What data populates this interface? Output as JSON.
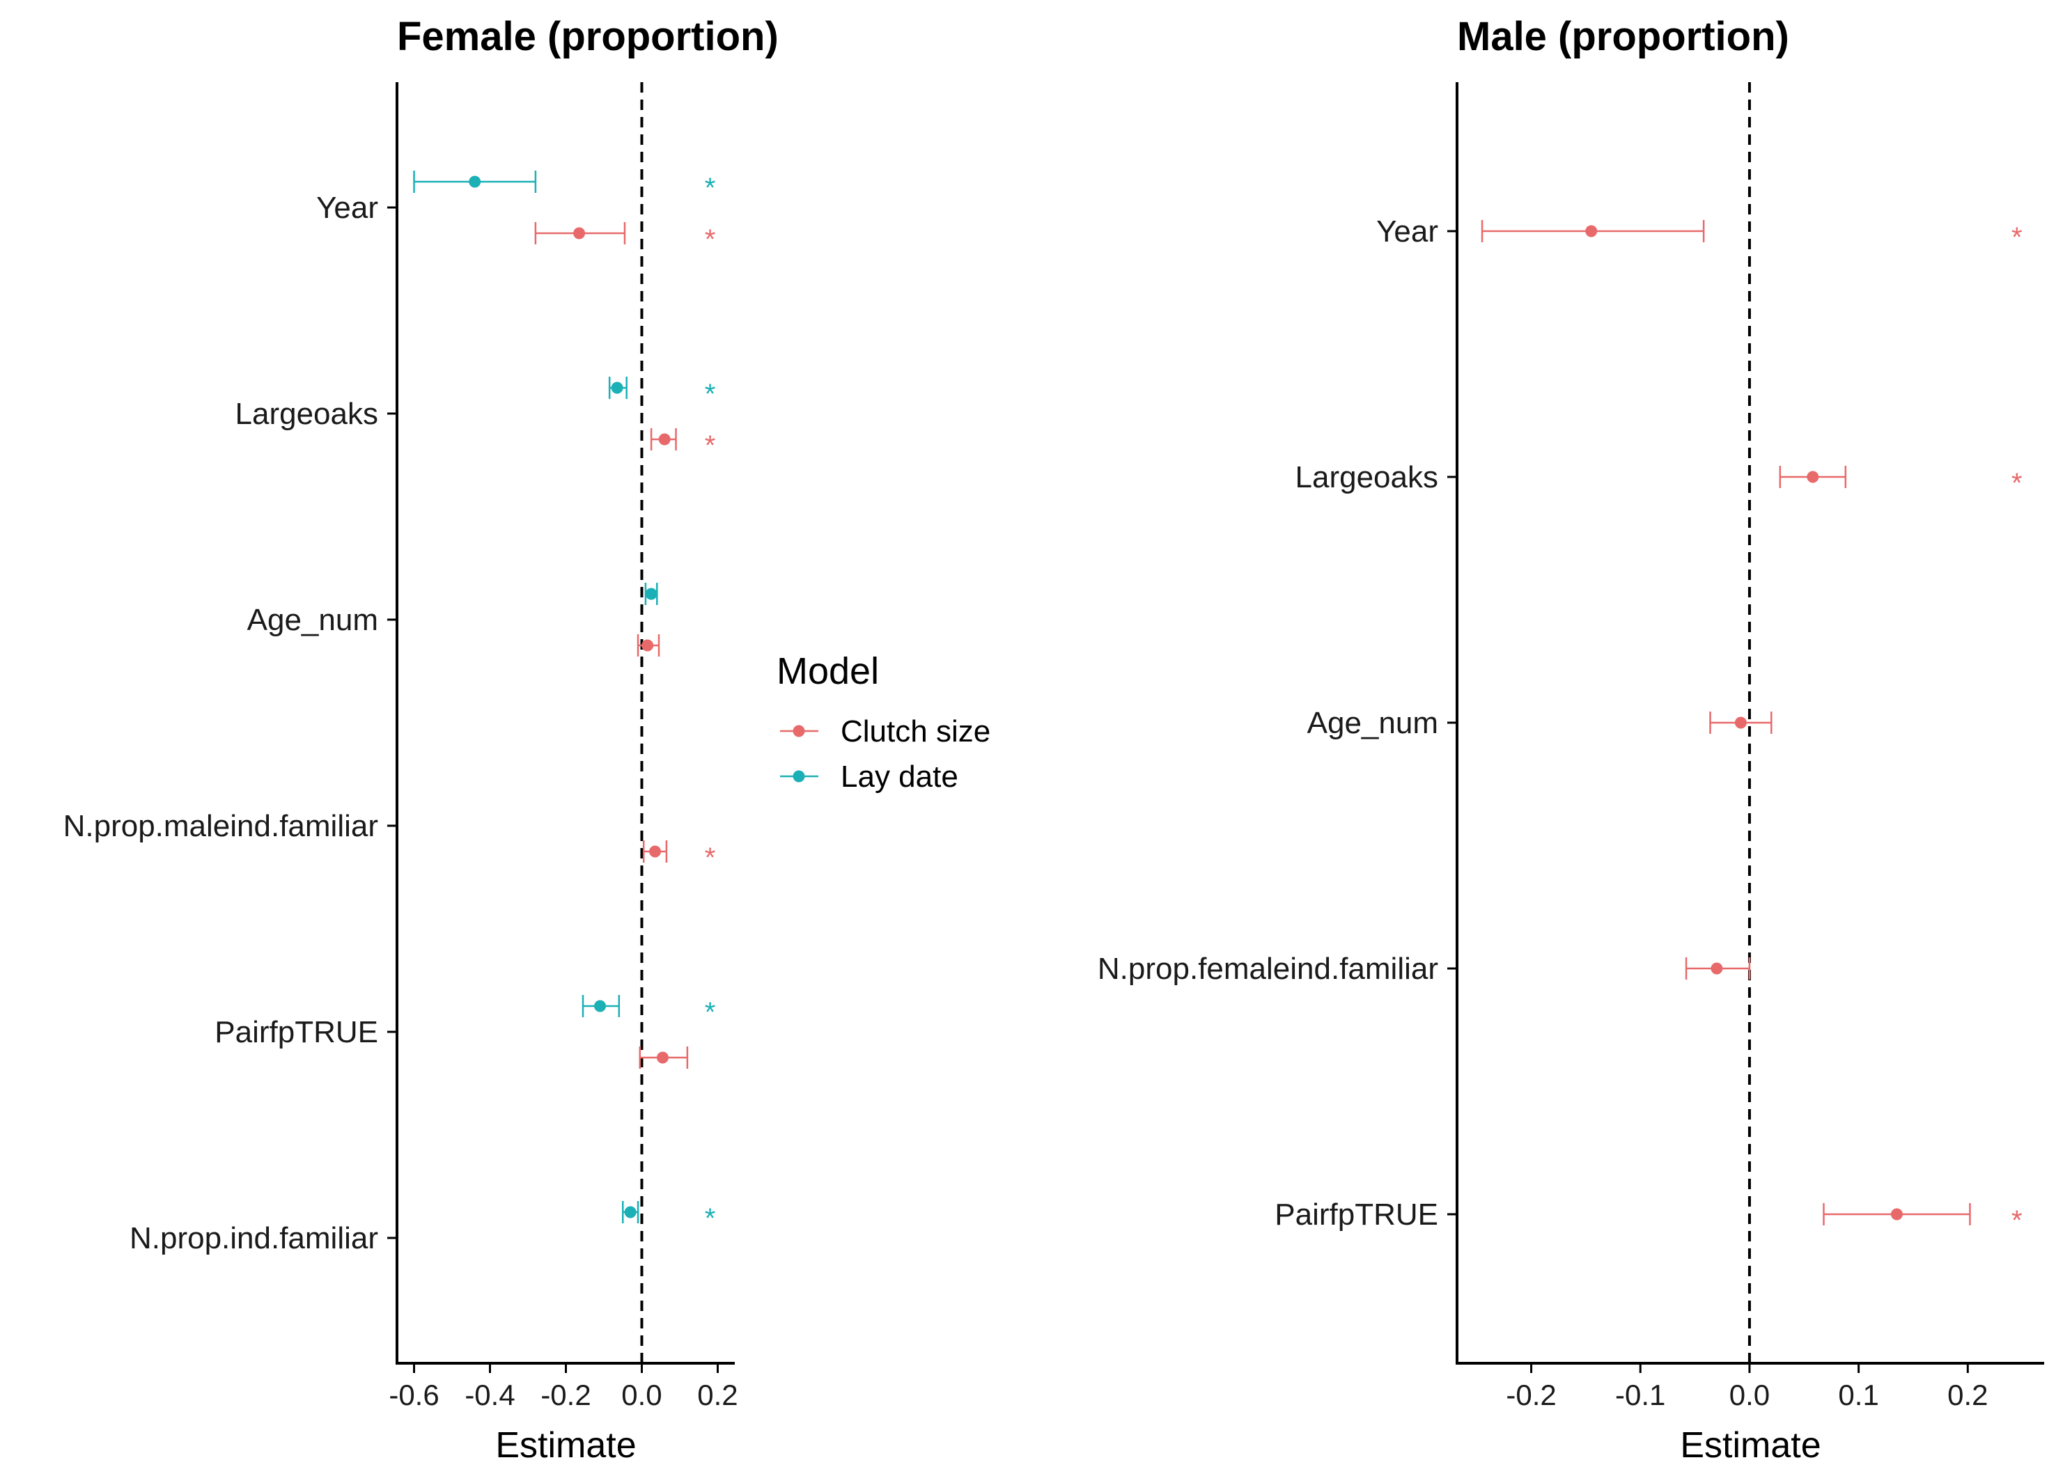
{
  "colors": {
    "clutch_size": "#E8696A",
    "lay_date": "#1AB0B5",
    "axis": "#000000",
    "ref_line": "#000000"
  },
  "legend": {
    "title": "Model",
    "entries": [
      {
        "label": "Clutch size",
        "color": "#E8696A"
      },
      {
        "label": "Lay date",
        "color": "#1AB0B5"
      }
    ]
  },
  "chart_data": [
    {
      "type": "forest",
      "title": "Female (proportion)",
      "xlabel": "Estimate",
      "ylabel": "",
      "xlim": [
        -0.645,
        0.245
      ],
      "xticks": [
        -0.6,
        -0.4,
        -0.2,
        0.0,
        0.2
      ],
      "xtick_labels": [
        "-0.6",
        "-0.4",
        "-0.2",
        "0.0",
        "0.2"
      ],
      "reference_line": 0,
      "star_x": 0.18,
      "categories": [
        "Year",
        "Largeoaks",
        "Age_num",
        "N.prop.maleind.familiar",
        "PairfpTRUE",
        "N.prop.ind.familiar"
      ],
      "series": [
        {
          "name": "Clutch size",
          "color": "#E8696A",
          "points": [
            {
              "category": "Year",
              "estimate": -0.165,
              "lower": -0.28,
              "upper": -0.045,
              "significant": true
            },
            {
              "category": "Largeoaks",
              "estimate": 0.06,
              "lower": 0.025,
              "upper": 0.09,
              "significant": true
            },
            {
              "category": "Age_num",
              "estimate": 0.015,
              "lower": -0.01,
              "upper": 0.045,
              "significant": false
            },
            {
              "category": "N.prop.maleind.familiar",
              "estimate": 0.035,
              "lower": 0.005,
              "upper": 0.065,
              "significant": true
            },
            {
              "category": "PairfpTRUE",
              "estimate": 0.055,
              "lower": -0.005,
              "upper": 0.12,
              "significant": false
            }
          ]
        },
        {
          "name": "Lay date",
          "color": "#1AB0B5",
          "points": [
            {
              "category": "Year",
              "estimate": -0.44,
              "lower": -0.6,
              "upper": -0.28,
              "significant": true
            },
            {
              "category": "Largeoaks",
              "estimate": -0.065,
              "lower": -0.085,
              "upper": -0.04,
              "significant": true
            },
            {
              "category": "Age_num",
              "estimate": 0.025,
              "lower": 0.01,
              "upper": 0.04,
              "significant": false
            },
            {
              "category": "PairfpTRUE",
              "estimate": -0.11,
              "lower": -0.155,
              "upper": -0.06,
              "significant": true
            },
            {
              "category": "N.prop.ind.familiar",
              "estimate": -0.03,
              "lower": -0.05,
              "upper": -0.01,
              "significant": true
            }
          ]
        }
      ]
    },
    {
      "type": "forest",
      "title": "Male (proportion)",
      "xlabel": "Estimate",
      "ylabel": "",
      "xlim": [
        -0.268,
        0.27
      ],
      "xticks": [
        -0.2,
        -0.1,
        0.0,
        0.1,
        0.2
      ],
      "xtick_labels": [
        "-0.2",
        "-0.1",
        "0.0",
        "0.1",
        "0.2"
      ],
      "reference_line": 0,
      "star_x": 0.245,
      "categories": [
        "Year",
        "Largeoaks",
        "Age_num",
        "N.prop.femaleind.familiar",
        "PairfpTRUE"
      ],
      "series": [
        {
          "name": "Clutch size",
          "color": "#E8696A",
          "points": [
            {
              "category": "Year",
              "estimate": -0.145,
              "lower": -0.245,
              "upper": -0.042,
              "significant": true
            },
            {
              "category": "Largeoaks",
              "estimate": 0.058,
              "lower": 0.028,
              "upper": 0.088,
              "significant": true
            },
            {
              "category": "Age_num",
              "estimate": -0.008,
              "lower": -0.036,
              "upper": 0.02,
              "significant": false
            },
            {
              "category": "N.prop.femaleind.familiar",
              "estimate": -0.03,
              "lower": -0.058,
              "upper": 0.0,
              "significant": false
            },
            {
              "category": "PairfpTRUE",
              "estimate": 0.135,
              "lower": 0.068,
              "upper": 0.202,
              "significant": true
            }
          ]
        }
      ]
    }
  ]
}
